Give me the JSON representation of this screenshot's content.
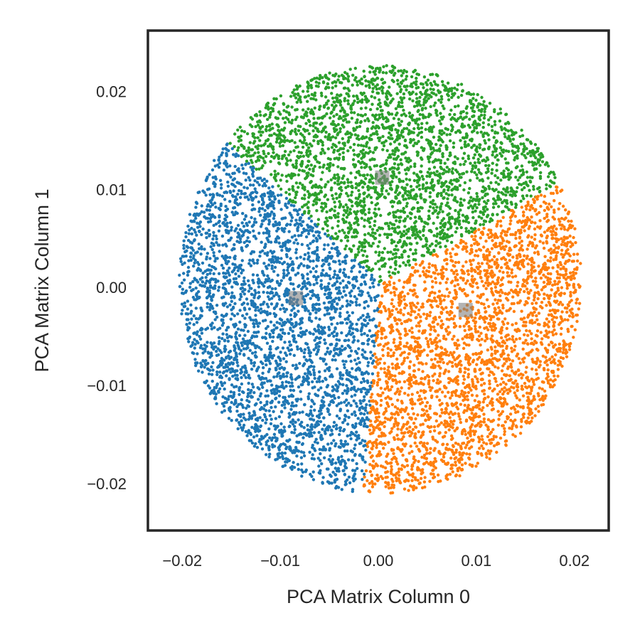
{
  "chart_data": {
    "type": "scatter",
    "title": "",
    "xlabel": "PCA Matrix Column 0",
    "ylabel": "PCA Matrix Column 1",
    "xlim": [
      -0.0235,
      0.0235
    ],
    "ylim": [
      -0.0248,
      0.0262
    ],
    "xticks": [
      -0.02,
      -0.01,
      0.0,
      0.01,
      0.02
    ],
    "xtick_labels": [
      "−0.02",
      "−0.01",
      "0.00",
      "0.01",
      "0.02"
    ],
    "yticks": [
      -0.02,
      -0.01,
      0.0,
      0.01,
      0.02
    ],
    "ytick_labels": [
      "−0.02",
      "−0.01",
      "0.00",
      "0.01",
      "0.02"
    ],
    "grid": false,
    "legend": "none",
    "clusters": [
      {
        "color": "#1f77b4",
        "centroid": [
          -0.0084,
          -0.0011
        ],
        "region": "left wedge, x from about -0.0195 to 0.0012, y from about -0.0197 to 0.0118",
        "approx_points": 3000
      },
      {
        "color": "#2ca02c",
        "centroid": [
          0.0004,
          0.0112
        ],
        "region": "top wedge, x from about -0.013 to 0.0168, y from about 0.0 to 0.0232",
        "approx_points": 3000
      },
      {
        "color": "#ff7f0e",
        "centroid": [
          0.0089,
          -0.0023
        ],
        "region": "right wedge, x from about 0.0 to 0.0205, y from about -0.0215 to 0.0118",
        "approx_points": 3000
      }
    ],
    "centroid_marker": {
      "shape": "square",
      "color": "#808080"
    }
  }
}
